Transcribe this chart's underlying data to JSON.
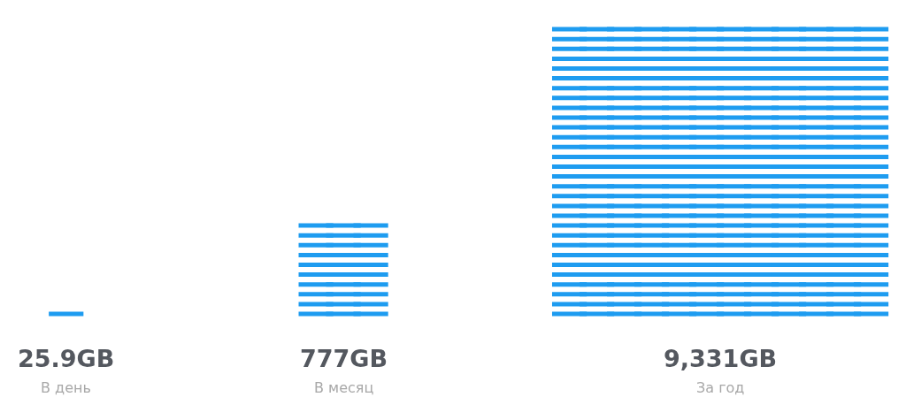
{
  "chart_data": {
    "type": "other",
    "categories": [
      "В день",
      "В месяц",
      "За год"
    ],
    "values": [
      25.9,
      777,
      9331
    ],
    "value_labels": [
      "25.9GB",
      "777GB",
      "9,331GB"
    ],
    "color": "#1e9cf0"
  }
}
